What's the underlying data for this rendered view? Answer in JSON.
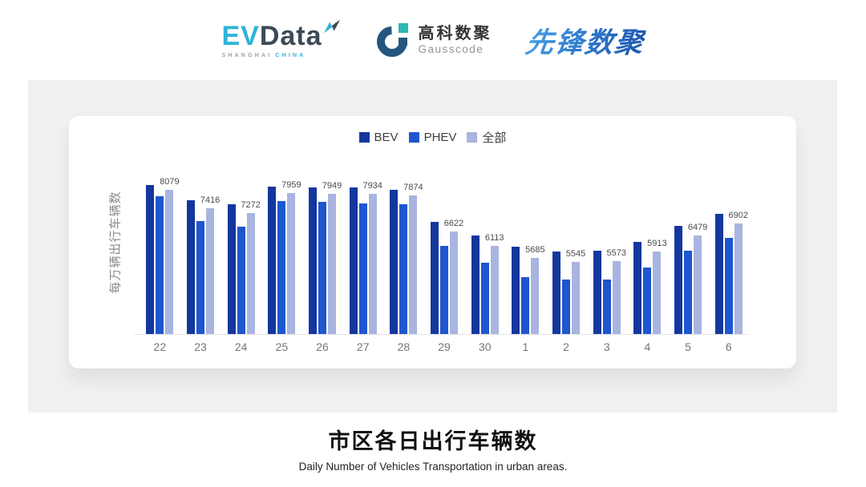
{
  "header": {
    "evdata": {
      "ev": "EV",
      "data": "Data",
      "sub_left": "SHANGHAI",
      "sub_right": "CHINA"
    },
    "gausscode": {
      "cn": "高科数聚",
      "en": "Gausscode"
    },
    "xianfeng": {
      "name": "先锋数聚"
    }
  },
  "colors": {
    "bev": "#14379e",
    "phev": "#1e56cf",
    "all": "#a9b4e0",
    "evdata_cyan": "#2fb3d9",
    "evdata_slate": "#3d4a57",
    "gausscode_blue": "#24567f",
    "gausscode_teal": "#2cb8b0",
    "panel_grey": "#f0f0f1",
    "axis_grey": "#e3e3e6"
  },
  "chart_data": {
    "type": "bar",
    "title": "市区各日出行车辆数",
    "subtitle": "Daily Number of Vehicles Transportation in urban areas.",
    "xlabel": "",
    "ylabel": "每万辆出行车辆数",
    "ylim": [
      3000,
      8500
    ],
    "grid": false,
    "legend_position": "top",
    "value_labels_on": "全部",
    "categories": [
      "22",
      "23",
      "24",
      "25",
      "26",
      "27",
      "28",
      "29",
      "30",
      "1",
      "2",
      "3",
      "4",
      "5",
      "6"
    ],
    "series": [
      {
        "name": "BEV",
        "color": "#14379e",
        "values": [
          8250,
          7700,
          7580,
          8190,
          8175,
          8155,
          8065,
          6940,
          6460,
          6075,
          5910,
          5935,
          6230,
          6805,
          7235
        ]
      },
      {
        "name": "PHEV",
        "color": "#1e56cf",
        "values": [
          7855,
          6985,
          6780,
          7670,
          7645,
          7610,
          7580,
          6100,
          5510,
          5015,
          4925,
          4905,
          5335,
          5920,
          6375
        ]
      },
      {
        "name": "全部",
        "color": "#a9b4e0",
        "labeled": true,
        "values": [
          8079,
          7416,
          7272,
          7959,
          7949,
          7934,
          7874,
          6622,
          6113,
          5685,
          5545,
          5573,
          5913,
          6479,
          6902
        ]
      }
    ]
  }
}
